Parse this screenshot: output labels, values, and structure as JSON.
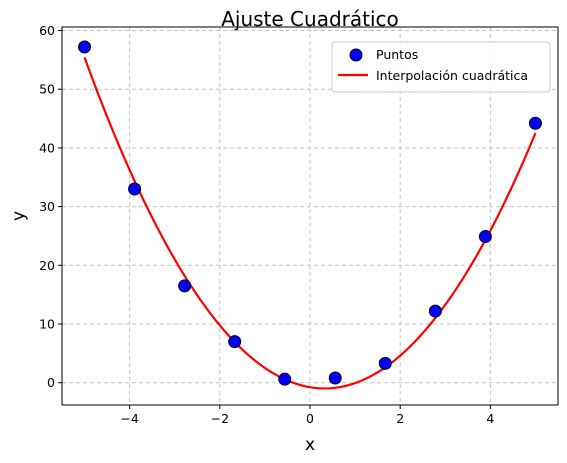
{
  "chart_data": {
    "type": "scatter",
    "title": "Ajuste Cuadrático",
    "xlabel": "x",
    "ylabel": "y",
    "xlim": [
      -5.5,
      5.5
    ],
    "ylim": [
      -3.8,
      60.6
    ],
    "xticks": [
      -4,
      -2,
      0,
      2,
      4
    ],
    "xtick_labels": [
      "−4",
      "−2",
      "0",
      "2",
      "4"
    ],
    "yticks": [
      0,
      10,
      20,
      30,
      40,
      50,
      60
    ],
    "ytick_labels": [
      "0",
      "10",
      "20",
      "30",
      "40",
      "50",
      "60"
    ],
    "grid": true,
    "legend_position": "top-right",
    "series": [
      {
        "name": "Puntos",
        "kind": "scatter",
        "color": "#0000ff",
        "edge_color": "#000000",
        "x": [
          -5.0,
          -3.89,
          -2.78,
          -1.67,
          -0.56,
          0.56,
          1.67,
          2.78,
          3.89,
          5.0
        ],
        "y": [
          57.2,
          33.0,
          16.5,
          7.0,
          0.6,
          0.8,
          3.3,
          12.2,
          24.9,
          44.2
        ]
      },
      {
        "name": "Interpolación cuadrática",
        "kind": "line",
        "color": "#ff0000",
        "fit": {
          "a": 1.99,
          "b": -1.29,
          "c": -0.77
        },
        "x_range": [
          -5.0,
          5.0
        ]
      }
    ]
  }
}
